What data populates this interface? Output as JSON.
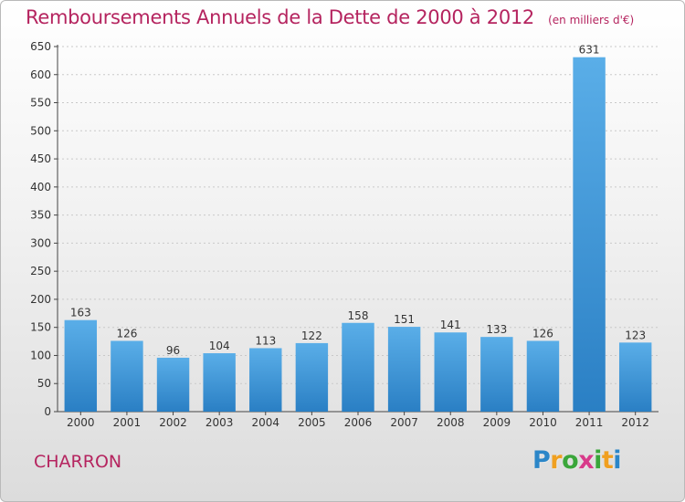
{
  "chart_data": {
    "type": "bar",
    "title": "Remboursements Annuels de la Dette de 2000 à 2012",
    "unit_label": "(en milliers d'€)",
    "categories": [
      "2000",
      "2001",
      "2002",
      "2003",
      "2004",
      "2005",
      "2006",
      "2007",
      "2008",
      "2009",
      "2010",
      "2011",
      "2012"
    ],
    "values": [
      163,
      126,
      96,
      104,
      113,
      122,
      158,
      151,
      141,
      133,
      126,
      631,
      123
    ],
    "ylim": [
      0,
      650
    ],
    "yticks": [
      0,
      50,
      100,
      150,
      200,
      250,
      300,
      350,
      400,
      450,
      500,
      550,
      600,
      650
    ],
    "xlabel": "",
    "ylabel": "",
    "grid": true,
    "bar_color_top": "#5aaee8",
    "bar_color_bottom": "#2a7fc4"
  },
  "commune_name": "CHARRON",
  "logo": {
    "letters": [
      "P",
      "r",
      "o",
      "x",
      "i",
      "t",
      "i"
    ],
    "colors": [
      "#2b86c8",
      "#f0a020",
      "#3aa63a",
      "#d83a8a",
      "#3aa63a",
      "#f0a020",
      "#2b86c8"
    ]
  }
}
